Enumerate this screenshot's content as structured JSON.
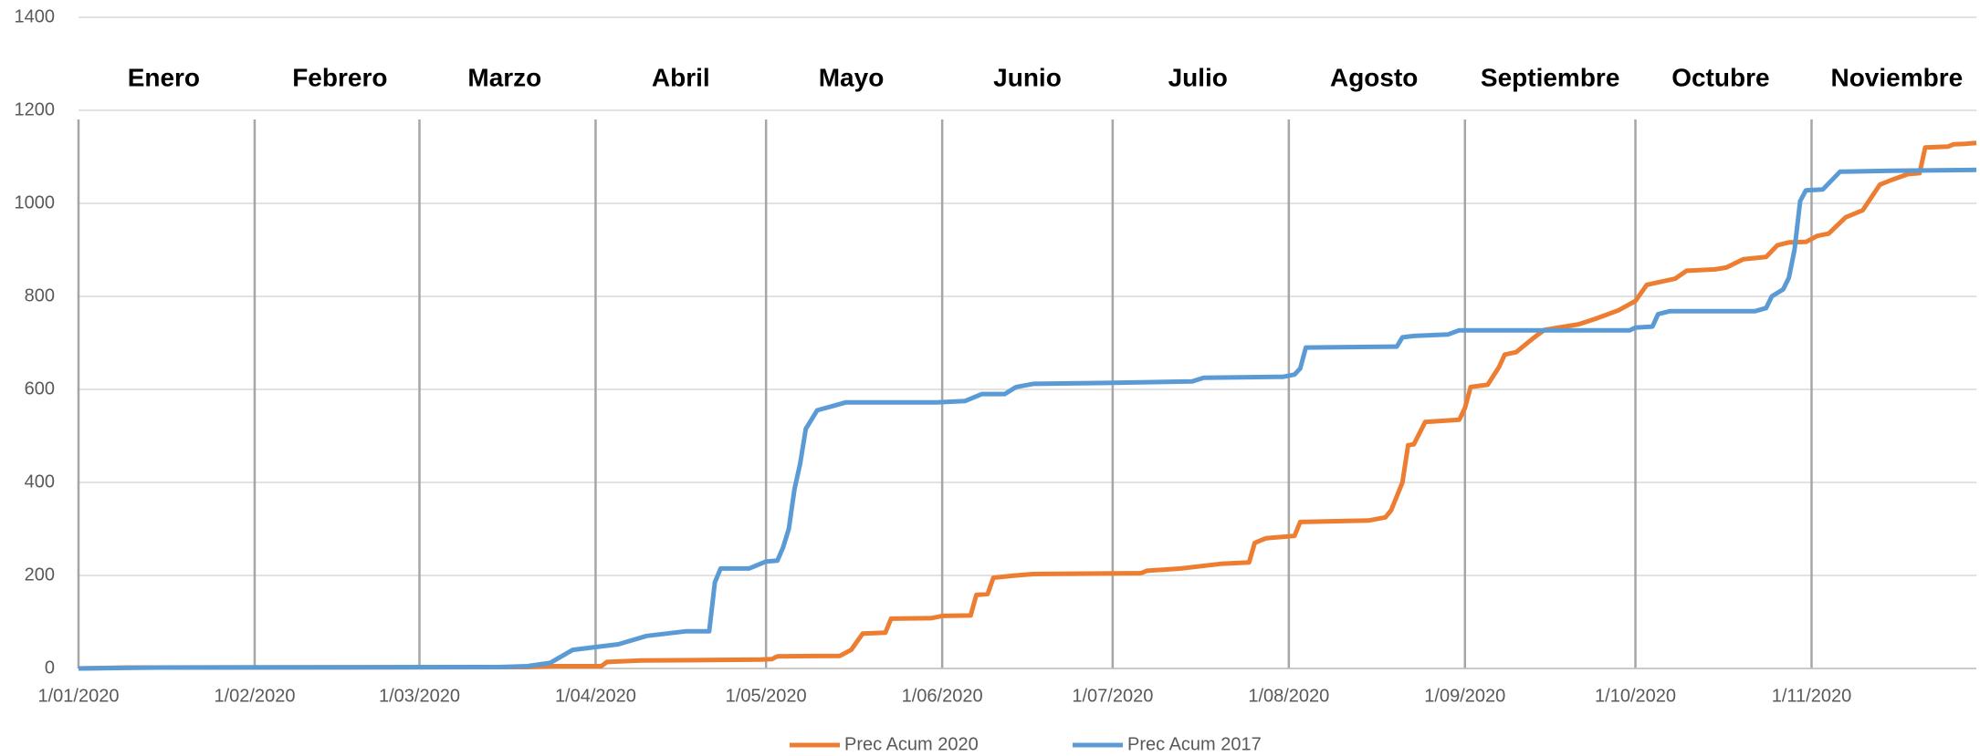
{
  "chart_data": {
    "type": "line",
    "annotations": [
      "Enero",
      "Febrero",
      "Marzo",
      "Abril",
      "Mayo",
      "Junio",
      "Julio",
      "Agosto",
      "Septiembre",
      "Octubre",
      "Noviembre"
    ],
    "xlim": [
      "1/01/2020",
      "30/11/2020"
    ],
    "xticks": [
      "1/01/2020",
      "1/02/2020",
      "1/03/2020",
      "1/04/2020",
      "1/05/2020",
      "1/06/2020",
      "1/07/2020",
      "1/08/2020",
      "1/09/2020",
      "1/10/2020",
      "1/11/2020"
    ],
    "ylim": [
      0,
      1400
    ],
    "yticks": [
      0,
      200,
      400,
      600,
      800,
      1000,
      1200,
      1400
    ],
    "grid": true,
    "legend": "bottom",
    "series": [
      {
        "name": "Prec Acum 2020",
        "color": "#ed7d31",
        "x": [
          "1/01/2020",
          "10/01/2020",
          "20/03/2020",
          "24/03/2020",
          "2/04/2020",
          "3/04/2020",
          "9/04/2020",
          "30/04/2020",
          "2/05/2020",
          "3/05/2020",
          "14/05/2020",
          "16/05/2020",
          "18/05/2020",
          "22/05/2020",
          "23/05/2020",
          "30/05/2020",
          "1/06/2020",
          "6/06/2020",
          "7/06/2020",
          "9/06/2020",
          "10/06/2020",
          "14/06/2020",
          "17/06/2020",
          "6/07/2020",
          "7/07/2020",
          "13/07/2020",
          "20/07/2020",
          "25/07/2020",
          "26/07/2020",
          "28/07/2020",
          "2/08/2020",
          "3/08/2020",
          "15/08/2020",
          "18/08/2020",
          "19/08/2020",
          "21/08/2020",
          "22/08/2020",
          "23/08/2020",
          "25/08/2020",
          "31/08/2020",
          "1/09/2020",
          "2/09/2020",
          "5/09/2020",
          "7/09/2020",
          "8/09/2020",
          "10/09/2020",
          "13/09/2020",
          "15/09/2020",
          "21/09/2020",
          "24/09/2020",
          "28/09/2020",
          "1/10/2020",
          "3/10/2020",
          "8/10/2020",
          "10/10/2020",
          "15/10/2020",
          "17/10/2020",
          "20/10/2020",
          "24/10/2020",
          "26/10/2020",
          "28/10/2020",
          "31/10/2020",
          "2/11/2020",
          "4/11/2020",
          "7/11/2020",
          "10/11/2020",
          "13/11/2020",
          "15/11/2020",
          "18/11/2020",
          "20/11/2020",
          "21/11/2020",
          "25/11/2020",
          "26/11/2020",
          "28/11/2020",
          "30/11/2020"
        ],
        "values": [
          0,
          2,
          3,
          5,
          5,
          14,
          17,
          19,
          20,
          26,
          27,
          40,
          75,
          77,
          107,
          108,
          113,
          114,
          158,
          160,
          195,
          200,
          203,
          205,
          210,
          215,
          225,
          228,
          270,
          280,
          285,
          315,
          318,
          325,
          340,
          400,
          480,
          482,
          530,
          535,
          560,
          605,
          610,
          648,
          675,
          680,
          710,
          728,
          740,
          752,
          770,
          790,
          825,
          838,
          855,
          858,
          862,
          880,
          885,
          910,
          916,
          917,
          930,
          935,
          970,
          985,
          1040,
          1050,
          1063,
          1065,
          1120,
          1122,
          1127,
          1128,
          1130
        ]
      },
      {
        "name": "Prec Acum 2017",
        "color": "#5b9bd5",
        "x": [
          "1/01/2020",
          "15/01/2020",
          "15/03/2020",
          "20/03/2020",
          "24/03/2020",
          "28/03/2020",
          "5/04/2020",
          "10/04/2020",
          "17/04/2020",
          "21/04/2020",
          "22/04/2020",
          "23/04/2020",
          "28/04/2020",
          "1/05/2020",
          "3/05/2020",
          "4/05/2020",
          "5/05/2020",
          "6/05/2020",
          "7/05/2020",
          "8/05/2020",
          "10/05/2020",
          "13/05/2020",
          "15/05/2020",
          "31/05/2020",
          "5/06/2020",
          "8/06/2020",
          "12/06/2020",
          "14/06/2020",
          "17/06/2020",
          "30/06/2020",
          "15/07/2020",
          "17/07/2020",
          "31/07/2020",
          "2/08/2020",
          "3/08/2020",
          "4/08/2020",
          "20/08/2020",
          "21/08/2020",
          "23/08/2020",
          "29/08/2020",
          "31/08/2020",
          "30/09/2020",
          "1/10/2020",
          "4/10/2020",
          "5/10/2020",
          "7/10/2020",
          "22/10/2020",
          "24/10/2020",
          "25/10/2020",
          "27/10/2020",
          "28/10/2020",
          "29/10/2020",
          "30/10/2020",
          "31/10/2020",
          "3/11/2020",
          "6/11/2020",
          "15/11/2020",
          "30/11/2020"
        ],
        "values": [
          0,
          2,
          3,
          5,
          12,
          40,
          52,
          70,
          80,
          80,
          185,
          215,
          215,
          230,
          232,
          260,
          300,
          385,
          440,
          515,
          555,
          565,
          572,
          572,
          575,
          590,
          590,
          605,
          612,
          614,
          617,
          625,
          627,
          632,
          645,
          690,
          692,
          712,
          715,
          718,
          727,
          727,
          733,
          735,
          762,
          768,
          768,
          775,
          800,
          815,
          840,
          900,
          1005,
          1028,
          1030,
          1068,
          1070,
          1072
        ]
      }
    ]
  }
}
